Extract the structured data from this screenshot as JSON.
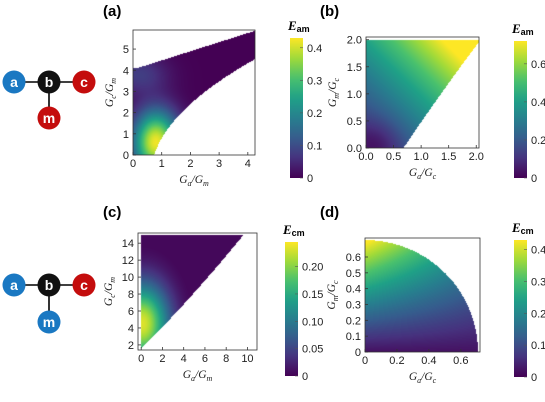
{
  "colors": {
    "node_blue": "#1a78c2",
    "node_black": "#111111",
    "node_red": "#c40d0d",
    "cmap": [
      "#440154",
      "#46327e",
      "#365c8d",
      "#277f8e",
      "#1fa187",
      "#4ac16d",
      "#a0da39",
      "#fde725"
    ]
  },
  "schematics": [
    {
      "nodes": [
        {
          "id": "a",
          "label": "a",
          "color": "blue"
        },
        {
          "id": "b",
          "label": "b",
          "color": "black"
        },
        {
          "id": "c",
          "label": "c",
          "color": "red"
        },
        {
          "id": "m",
          "label": "m",
          "color": "red"
        }
      ]
    },
    {
      "nodes": [
        {
          "id": "a",
          "label": "a",
          "color": "blue"
        },
        {
          "id": "b",
          "label": "b",
          "color": "black"
        },
        {
          "id": "c",
          "label": "c",
          "color": "red"
        },
        {
          "id": "m",
          "label": "m",
          "color": "blue"
        }
      ]
    }
  ],
  "chart_data": [
    {
      "type": "heatmap",
      "panel": "(a)",
      "x": {
        "label_main": "G",
        "label_sub1": "a",
        "label_sep": "/G",
        "label_sub2": "m",
        "range": [
          0,
          4.25
        ],
        "ticks": [
          "0",
          "1",
          "2",
          "3",
          "4"
        ]
      },
      "y": {
        "label_main": "G",
        "label_sub1": "c",
        "label_sep": "/G",
        "label_sub2": "m",
        "range": [
          0,
          5.9
        ],
        "ticks": [
          "0",
          "1",
          "2",
          "3",
          "4",
          "5"
        ]
      },
      "colorbar": {
        "title_main": "E",
        "title_sub": "am",
        "range": [
          0,
          0.43
        ],
        "ticks": [
          "0",
          "0.1",
          "0.2",
          "0.3",
          "0.4"
        ]
      },
      "region": "0 ≤ x, y ≤ 4.1, bounded on the right by x ≈ (y+1)²/6 curve reaching (4.1, 5.7); peak ≈ 0.42 near (0.8, 0.5)"
    },
    {
      "type": "heatmap",
      "panel": "(b)",
      "x": {
        "label_main": "G",
        "label_sub1": "a",
        "label_sep": "/G",
        "label_sub2": "c",
        "range": [
          0,
          2.05
        ],
        "ticks": [
          "0.0",
          "0.5",
          "1.0",
          "1.5",
          "2.0"
        ]
      },
      "y": {
        "label_main": "G",
        "label_sub1": "m",
        "label_sep": "/G",
        "label_sub2": "c",
        "range": [
          0,
          2.05
        ],
        "ticks": [
          "0.0",
          "0.5",
          "1.0",
          "1.5",
          "2.0"
        ]
      },
      "colorbar": {
        "title_main": "E",
        "title_sub": "am",
        "range": [
          0,
          0.72
        ],
        "ticks": [
          "0",
          "0.2",
          "0.4",
          "0.6"
        ]
      },
      "region": "x ≤ 0.7 + 0.65y, 0 ≤ y ≤ 2; peak ≈ 0.7 near (2.0, 2.0)"
    },
    {
      "type": "heatmap",
      "panel": "(c)",
      "x": {
        "label_main": "G",
        "label_sub1": "a",
        "label_sep": "/G",
        "label_sub2": "m",
        "range": [
          -0.3,
          10.9
        ],
        "ticks": [
          "0",
          "2",
          "4",
          "6",
          "8",
          "10"
        ]
      },
      "y": {
        "label_main": "G",
        "label_sub1": "c",
        "label_sep": "/G",
        "label_sub2": "m",
        "range": [
          1.4,
          15.2
        ],
        "ticks": [
          "2",
          "4",
          "6",
          "8",
          "10",
          "12",
          "14"
        ]
      },
      "colorbar": {
        "title_main": "E",
        "title_sub": "cm",
        "range": [
          0,
          0.245
        ],
        "ticks": [
          "0",
          "0.05",
          "0.10",
          "0.15",
          "0.20"
        ]
      },
      "region": "upper-left triangle above y = 1.55 + 1.25x curve, y ≤ 15; peak ≈ 0.23 near (0.2, 4)"
    },
    {
      "type": "heatmap",
      "panel": "(d)",
      "x": {
        "label_main": "G",
        "label_sub1": "a",
        "label_sep": "/G",
        "label_sub2": "c",
        "range": [
          0,
          0.72
        ],
        "ticks": [
          "0",
          "0.2",
          "0.4",
          "0.6"
        ]
      },
      "y": {
        "label_main": "G",
        "label_sub1": "m",
        "label_sep": "/G",
        "label_sub2": "c",
        "range": [
          0,
          0.72
        ],
        "ticks": [
          "0",
          "0.1",
          "0.2",
          "0.3",
          "0.4",
          "0.5",
          "0.6"
        ]
      },
      "colorbar": {
        "title_main": "E",
        "title_sub": "cm",
        "range": [
          0,
          0.43
        ],
        "ticks": [
          "0",
          "0.1",
          "0.2",
          "0.3",
          "0.4"
        ]
      },
      "region": "quarter disk x² + y² ≤ 0.707², peak ≈ 0.42 at (0, 0.7)"
    }
  ]
}
